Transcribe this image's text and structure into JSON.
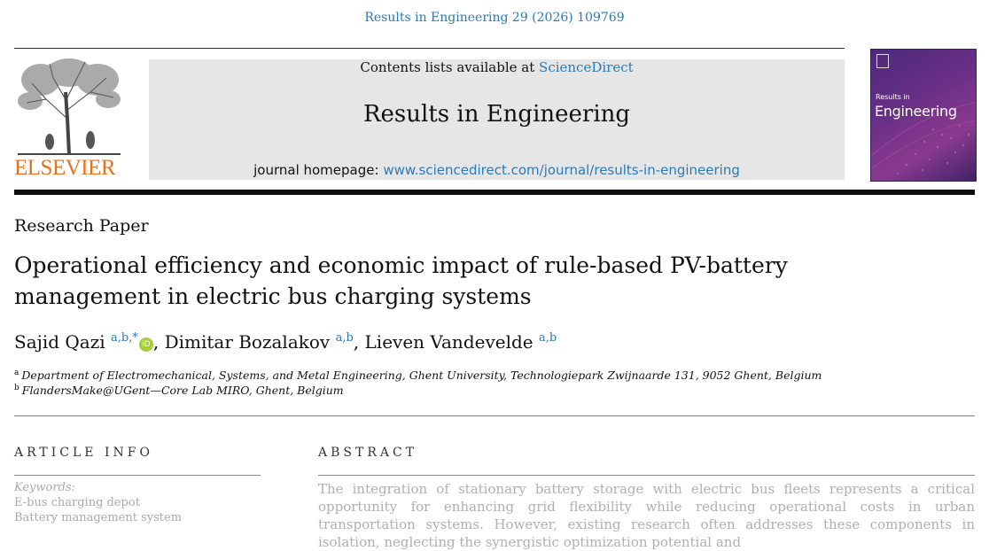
{
  "header": {
    "running_head": "Results in Engineering 29 (2026) 109769"
  },
  "publisher": {
    "name": "ELSEVIER",
    "color": "#e8711c"
  },
  "banner": {
    "contents_prefix": "Contents lists available at ",
    "contents_link": "ScienceDirect",
    "journal_title": "Results in Engineering",
    "homepage_prefix": "journal homepage: ",
    "homepage_link": "www.sciencedirect.com/journal/results-in-engineering"
  },
  "cover": {
    "small_text": "Results in",
    "big_text": "Engineering"
  },
  "article": {
    "type": "Research Paper",
    "title_line1": "Operational efficiency and economic impact of rule-based PV-battery",
    "title_line2": "management in electric bus charging systems",
    "authors": [
      {
        "name": "Sajid Qazi",
        "affil": "a,b,",
        "corresponding": "*"
      },
      {
        "name": "Dimitar Bozalakov",
        "affil": "a,b"
      },
      {
        "name": "Lieven Vandevelde",
        "affil": "a,b"
      }
    ],
    "orcid_label": "iD",
    "affiliations": [
      {
        "mark": "a",
        "text": "Department of Electromechanical, Systems, and Metal Engineering, Ghent University, Technologiepark Zwijnaarde 131, 9052 Ghent, Belgium"
      },
      {
        "mark": "b",
        "text": "FlandersMake@UGent—Core Lab MIRO, Ghent, Belgium"
      }
    ]
  },
  "article_info": {
    "heading": "ARTICLE INFO",
    "keywords_label": "Keywords:",
    "keywords": [
      "E-bus charging depot",
      "Battery management system"
    ]
  },
  "abstract": {
    "heading": "ABSTRACT",
    "text": "The integration of stationary battery storage with electric bus fleets represents a critical opportunity for enhancing grid flexibility while reducing operational costs in urban transportation systems. However, existing research often addresses these components in isolation, neglecting the synergistic optimization potential and"
  }
}
